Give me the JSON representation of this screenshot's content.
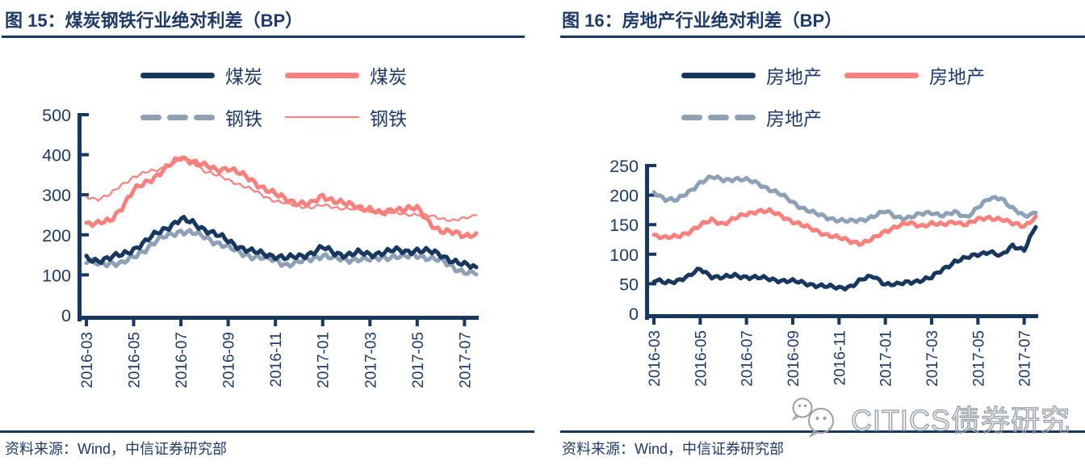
{
  "colors": {
    "navy": "#17375E",
    "pink": "#F9807D",
    "gray": "#8DA0B6",
    "text_navy": "#1E3A68",
    "watermark_gray": "#979DA4"
  },
  "figures": [
    {
      "title": "图 15：煤炭钢铁行业绝对利差（BP）",
      "source": "资料来源：Wind，中信证券研究部"
    },
    {
      "title": "图 16：房地产行业绝对利差（BP）",
      "source": "资料来源：Wind，中信证券研究部"
    }
  ],
  "watermark": {
    "text": "CITICS债券研究"
  },
  "chart_data": [
    {
      "type": "line",
      "title": "煤炭钢铁行业绝对利差（BP）",
      "x_tick_labels": [
        "2016-03",
        "2016-05",
        "2016-07",
        "2016-09",
        "2016-11",
        "2017-01",
        "2017-03",
        "2017-05",
        "2017-07"
      ],
      "ylim": [
        0,
        500
      ],
      "yticks": [
        0,
        100,
        200,
        300,
        400,
        500
      ],
      "grid": false,
      "legend_position": "top",
      "legend_rows": [
        [
          {
            "label": "煤炭",
            "color": "navy",
            "style": "solid-thick"
          },
          {
            "label": "煤炭",
            "color": "pink",
            "style": "solid-thick"
          }
        ],
        [
          {
            "label": "钢铁",
            "color": "gray",
            "style": "dash-thick"
          },
          {
            "label": "钢铁",
            "color": "pink",
            "style": "solid-thin"
          }
        ]
      ],
      "series": [
        {
          "name": "钢铁",
          "color": "pink",
          "style": "solid-thin",
          "values": [
            295,
            290,
            300,
            325,
            345,
            355,
            362,
            375,
            390,
            382,
            360,
            348,
            338,
            326,
            312,
            298,
            285,
            277,
            272,
            269,
            273,
            269,
            266,
            263,
            261,
            257,
            255,
            252,
            251,
            247,
            242,
            236,
            240,
            249
          ]
        },
        {
          "name": "煤炭",
          "color": "pink",
          "style": "solid-thick",
          "values": [
            230,
            227,
            235,
            270,
            310,
            330,
            350,
            372,
            393,
            385,
            372,
            362,
            368,
            352,
            336,
            318,
            300,
            288,
            280,
            276,
            298,
            286,
            276,
            270,
            266,
            250,
            264,
            267,
            265,
            232,
            210,
            204,
            199,
            204
          ]
        },
        {
          "name": "钢铁",
          "color": "gray",
          "style": "dash-thick",
          "values": [
            133,
            128,
            131,
            127,
            145,
            165,
            185,
            200,
            210,
            204,
            195,
            182,
            168,
            156,
            147,
            141,
            137,
            126,
            131,
            140,
            150,
            140,
            137,
            141,
            137,
            143,
            147,
            144,
            149,
            143,
            135,
            120,
            108,
            101
          ]
        },
        {
          "name": "煤炭",
          "color": "navy",
          "style": "solid-thick",
          "values": [
            140,
            137,
            142,
            150,
            165,
            182,
            205,
            222,
            238,
            230,
            215,
            200,
            185,
            170,
            158,
            152,
            148,
            141,
            146,
            155,
            168,
            154,
            151,
            155,
            150,
            157,
            161,
            158,
            163,
            158,
            150,
            136,
            124,
            119
          ]
        }
      ]
    },
    {
      "type": "line",
      "title": "房地产行业绝对利差（BP）",
      "x_tick_labels": [
        "2016-03",
        "2016-05",
        "2016-07",
        "2016-09",
        "2016-11",
        "2017-01",
        "2017-03",
        "2017-05",
        "2017-07"
      ],
      "ylim": [
        0,
        250
      ],
      "yticks": [
        0,
        50,
        100,
        150,
        200,
        250
      ],
      "grid": false,
      "legend_position": "top",
      "legend_rows": [
        [
          {
            "label": "房地产",
            "color": "navy",
            "style": "solid-thick"
          },
          {
            "label": "房地产",
            "color": "pink",
            "style": "solid-thick"
          }
        ],
        [
          {
            "label": "房地产",
            "color": "gray",
            "style": "dash-thick"
          }
        ]
      ],
      "series": [
        {
          "name": "房地产",
          "color": "gray",
          "style": "solid-thick",
          "values": [
            205,
            194,
            191,
            205,
            222,
            230,
            226,
            228,
            225,
            220,
            210,
            200,
            188,
            177,
            168,
            162,
            158,
            155,
            158,
            165,
            172,
            163,
            162,
            167,
            171,
            166,
            170,
            163,
            180,
            193,
            196,
            178,
            163,
            170
          ]
        },
        {
          "name": "房地产",
          "color": "pink",
          "style": "solid-thick",
          "values": [
            133,
            127,
            130,
            138,
            148,
            158,
            152,
            160,
            168,
            174,
            172,
            165,
            156,
            147,
            140,
            133,
            127,
            122,
            119,
            126,
            139,
            148,
            152,
            148,
            153,
            149,
            155,
            151,
            158,
            162,
            160,
            151,
            148,
            164
          ]
        },
        {
          "name": "房地产",
          "color": "navy",
          "style": "solid-thick",
          "values": [
            55,
            52,
            56,
            62,
            75,
            63,
            60,
            64,
            62,
            60,
            58,
            56,
            54,
            51,
            48,
            45,
            43,
            46,
            57,
            63,
            50,
            48,
            53,
            56,
            60,
            75,
            88,
            93,
            100,
            105,
            96,
            115,
            108,
            146
          ]
        }
      ]
    }
  ]
}
